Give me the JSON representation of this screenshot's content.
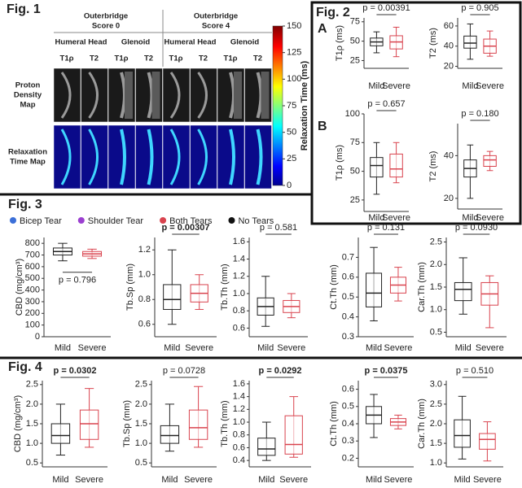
{
  "labels": {
    "fig1": "Fig. 1",
    "fig2": "Fig. 2",
    "fig3": "Fig. 3",
    "fig4": "Fig. 4",
    "panelA": "A",
    "panelB": "B"
  },
  "fig1": {
    "groups": [
      [
        "Outerbridge",
        "Score 0"
      ],
      [
        "Outerbridge",
        "Score 4"
      ]
    ],
    "regions": [
      "Humeral Head",
      "Glenoid",
      "Humeral Head",
      "Glenoid"
    ],
    "sequences": [
      "T1ρ",
      "T2",
      "T1ρ",
      "T2",
      "T1ρ",
      "T2",
      "T1ρ",
      "T2"
    ],
    "rows": [
      [
        "Proton",
        "Density",
        "Map"
      ],
      [
        "Relaxation",
        "Time Map"
      ]
    ]
  },
  "legend": [
    {
      "name": "Bicep Tear",
      "color": "#3b6fd8"
    },
    {
      "name": "Shoulder Tear",
      "color": "#9b3fd0"
    },
    {
      "name": "Both Tears",
      "color": "#d9434e"
    },
    {
      "name": "No Tears",
      "color": "#111111"
    }
  ],
  "chart_data": [
    {
      "type": "colorbar",
      "title": "Relaxation Time (ms)",
      "ylim": [
        0,
        150
      ],
      "yticks": [
        0,
        25,
        50,
        75,
        100,
        125,
        150
      ]
    },
    {
      "type": "box",
      "ylabel": "T1ρ (ms)",
      "categories": [
        "Mild",
        "Severe"
      ],
      "p_label": "p = 0.00391",
      "ylim": [
        15,
        80
      ],
      "yticks": [
        25,
        50,
        75
      ],
      "boxes": [
        {
          "color": "#222222",
          "min": 35,
          "q1": 44,
          "median": 49,
          "q3": 54,
          "max": 62
        },
        {
          "color": "#d9434e",
          "min": 30,
          "q1": 40,
          "median": 49,
          "q3": 57,
          "max": 68
        }
      ]
    },
    {
      "type": "box",
      "ylabel": "T2 (ms)",
      "categories": [
        "Mild",
        "Severe"
      ],
      "p_label": "p = 0.905",
      "ylim": [
        18,
        68
      ],
      "yticks": [
        20,
        40,
        60
      ],
      "boxes": [
        {
          "color": "#222222",
          "min": 27,
          "q1": 38,
          "median": 43,
          "q3": 50,
          "max": 62
        },
        {
          "color": "#d9434e",
          "min": 30,
          "q1": 33,
          "median": 40,
          "q3": 47,
          "max": 55
        }
      ]
    },
    {
      "type": "box",
      "ylabel": "T1ρ (ms)",
      "categories": [
        "Mild",
        "Severe"
      ],
      "p_label": "p = 0.657",
      "ylim": [
        15,
        100
      ],
      "yticks": [
        25,
        50,
        75,
        100
      ],
      "boxes": [
        {
          "color": "#222222",
          "min": 30,
          "q1": 45,
          "median": 55,
          "q3": 62,
          "max": 75
        },
        {
          "color": "#d9434e",
          "min": 40,
          "q1": 45,
          "median": 52,
          "q3": 65,
          "max": 75
        }
      ]
    },
    {
      "type": "box",
      "ylabel": "T2 (ms)",
      "categories": [
        "Mild",
        "Severe"
      ],
      "p_label": "p = 0.180",
      "ylim": [
        15,
        55
      ],
      "yticks": [
        20,
        40
      ],
      "boxes": [
        {
          "color": "#222222",
          "min": 20,
          "q1": 30,
          "median": 34,
          "q3": 38,
          "max": 45
        },
        {
          "color": "#d9434e",
          "min": 33,
          "q1": 35,
          "median": 38,
          "q3": 40,
          "max": 42
        }
      ]
    },
    {
      "type": "box",
      "ylabel": "CBD (mg/cm³)",
      "categories": [
        "Mild",
        "Severe"
      ],
      "p_label": "p = 0.796",
      "ylim": [
        0,
        850
      ],
      "yticks": [
        0,
        100,
        200,
        300,
        400,
        500,
        600,
        700,
        800
      ],
      "boxes": [
        {
          "color": "#222222",
          "min": 650,
          "q1": 700,
          "median": 730,
          "q3": 760,
          "max": 800
        },
        {
          "color": "#d9434e",
          "min": 670,
          "q1": 690,
          "median": 710,
          "q3": 730,
          "max": 750
        }
      ]
    },
    {
      "type": "box",
      "ylabel": "Tb.Sp (mm)",
      "categories": [
        "Mild",
        "Severe"
      ],
      "p_label": "p = 0.00307",
      "p_bold": true,
      "ylim": [
        0.5,
        1.3
      ],
      "yticks": [
        0.6,
        0.8,
        {
          "value": 1,
          "label": "1.0"
        },
        1.2
      ],
      "boxes": [
        {
          "color": "#222222",
          "min": 0.6,
          "q1": 0.72,
          "median": 0.8,
          "q3": 0.92,
          "max": 1.2
        },
        {
          "color": "#d9434e",
          "min": 0.72,
          "q1": 0.78,
          "median": 0.85,
          "q3": 0.92,
          "max": 1
        }
      ]
    },
    {
      "type": "box",
      "ylabel": "Tb.Th (mm)",
      "categories": [
        "Mild",
        "Severe"
      ],
      "p_label": "p = 0.581",
      "ylim": [
        0.5,
        1.65
      ],
      "yticks": [
        0.6,
        0.8,
        {
          "value": 1,
          "label": "1.0"
        },
        1.2,
        1.4,
        1.6
      ],
      "boxes": [
        {
          "color": "#222222",
          "min": 0.62,
          "q1": 0.75,
          "median": 0.85,
          "q3": 0.95,
          "max": 1.2
        },
        {
          "color": "#d9434e",
          "min": 0.72,
          "q1": 0.78,
          "median": 0.85,
          "q3": 0.92,
          "max": 1
        }
      ]
    },
    {
      "type": "box",
      "ylabel": "Ct.Th (mm)",
      "categories": [
        "Mild",
        "Severe"
      ],
      "p_label": "p = 0.131",
      "ylim": [
        0.3,
        0.8
      ],
      "yticks": [
        0.3,
        0.4,
        0.5,
        0.6,
        0.7
      ],
      "boxes": [
        {
          "color": "#222222",
          "min": 0.38,
          "q1": 0.45,
          "median": 0.52,
          "q3": 0.62,
          "max": 0.75
        },
        {
          "color": "#d9434e",
          "min": 0.48,
          "q1": 0.52,
          "median": 0.56,
          "q3": 0.6,
          "max": 0.65
        }
      ]
    },
    {
      "type": "box",
      "ylabel": "Car.Th (mm)",
      "categories": [
        "Mild",
        "Severe"
      ],
      "p_label": "p = 0.0930",
      "ylim": [
        0.4,
        2.6
      ],
      "yticks": [
        0.5,
        {
          "value": 1,
          "label": "1.0"
        },
        1.5,
        {
          "value": 2,
          "label": "2.0"
        },
        2.5
      ],
      "boxes": [
        {
          "color": "#222222",
          "min": 0.9,
          "q1": 1.2,
          "median": 1.45,
          "q3": 1.6,
          "max": 2.15
        },
        {
          "color": "#d9434e",
          "min": 0.6,
          "q1": 1.1,
          "median": 1.35,
          "q3": 1.6,
          "max": 1.75
        }
      ]
    },
    {
      "type": "box",
      "ylabel": "CBD (mg/cm³)",
      "categories": [
        "Mild",
        "Severe"
      ],
      "p_label": "p = 0.0302",
      "p_bold": true,
      "ylim": [
        0.4,
        2.6
      ],
      "yticks": [
        0.5,
        {
          "value": 1,
          "label": "1.0"
        },
        1.5,
        {
          "value": 2,
          "label": "2.0"
        },
        2.5
      ],
      "boxes": [
        {
          "color": "#222222",
          "min": 0.7,
          "q1": 1,
          "median": 1.2,
          "q3": 1.5,
          "max": 2
        },
        {
          "color": "#d9434e",
          "min": 0.9,
          "q1": 1.1,
          "median": 1.5,
          "q3": 1.85,
          "max": 2.4
        }
      ]
    },
    {
      "type": "box",
      "ylabel": "Tb.Sp (mm)",
      "categories": [
        "Mild",
        "Severe"
      ],
      "p_label": "p = 0.0728",
      "ylim": [
        0.4,
        2.6
      ],
      "yticks": [
        0.5,
        {
          "value": 1,
          "label": "1.0"
        },
        1.5,
        {
          "value": 2,
          "label": "2.0"
        },
        2.5
      ],
      "boxes": [
        {
          "color": "#222222",
          "min": 0.8,
          "q1": 1,
          "median": 1.2,
          "q3": 1.45,
          "max": 2
        },
        {
          "color": "#d9434e",
          "min": 0.9,
          "q1": 1.1,
          "median": 1.4,
          "q3": 1.85,
          "max": 2.45
        }
      ]
    },
    {
      "type": "box",
      "ylabel": "Tb.Th (mm)",
      "categories": [
        "Mild",
        "Severe"
      ],
      "p_label": "p = 0.0292",
      "p_bold": true,
      "ylim": [
        0.3,
        1.65
      ],
      "yticks": [
        0.4,
        0.6,
        0.8,
        {
          "value": 1,
          "label": "1.0"
        },
        1.2,
        1.4,
        1.6
      ],
      "boxes": [
        {
          "color": "#222222",
          "min": 0.4,
          "q1": 0.48,
          "median": 0.58,
          "q3": 0.75,
          "max": 1
        },
        {
          "color": "#d9434e",
          "min": 0.45,
          "q1": 0.5,
          "median": 0.65,
          "q3": 1.1,
          "max": 1.4
        }
      ]
    },
    {
      "type": "box",
      "ylabel": "Ct.Th (mm)",
      "categories": [
        "Mild",
        "Severe"
      ],
      "p_label": "p = 0.0375",
      "p_bold": true,
      "ylim": [
        0.15,
        0.65
      ],
      "yticks": [
        0.2,
        0.3,
        0.4,
        0.5,
        0.6
      ],
      "boxes": [
        {
          "color": "#222222",
          "min": 0.32,
          "q1": 0.4,
          "median": 0.45,
          "q3": 0.5,
          "max": 0.57
        },
        {
          "color": "#d9434e",
          "min": 0.37,
          "q1": 0.39,
          "median": 0.41,
          "q3": 0.43,
          "max": 0.45
        }
      ]
    },
    {
      "type": "box",
      "ylabel": "Car.Th (mm)",
      "categories": [
        "Mild",
        "Severe"
      ],
      "p_label": "p = 0.510",
      "ylim": [
        0.9,
        3.1
      ],
      "yticks": [
        {
          "value": 1,
          "label": "1.0"
        },
        1.5,
        {
          "value": 2,
          "label": "2.0"
        },
        2.5,
        {
          "value": 3,
          "label": "3.0"
        }
      ],
      "boxes": [
        {
          "color": "#222222",
          "min": 1.1,
          "q1": 1.4,
          "median": 1.7,
          "q3": 2.1,
          "max": 2.7
        },
        {
          "color": "#d9434e",
          "min": 1.05,
          "q1": 1.35,
          "median": 1.6,
          "q3": 1.75,
          "max": 2.05
        }
      ]
    }
  ]
}
